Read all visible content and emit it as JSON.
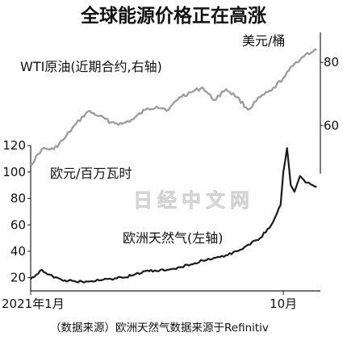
{
  "chart_data": {
    "type": "line",
    "title": "全球能源价格正在高涨",
    "source": "（数据来源）欧洲天然气数据来源于Refinitiv",
    "watermark": "日经中文网",
    "x_ticks": [
      "2021年1月",
      "10月"
    ],
    "xlim": [
      "2021-01",
      "2021-11"
    ],
    "left_axis": {
      "unit": "欧元/百万瓦时",
      "ylim": [
        10,
        125
      ],
      "ticks": [
        20,
        40,
        60,
        80,
        100,
        120
      ]
    },
    "right_axis": {
      "unit": "美元/桶",
      "ylim": [
        46,
        89
      ],
      "ticks": [
        60,
        80
      ]
    },
    "series": [
      {
        "name": "WTI原油(近期合约,右轴)",
        "axis": "right",
        "color": "#9e9e9e",
        "x": [
          "2021-01-01",
          "2021-01-13",
          "2021-01-26",
          "2021-02-07",
          "2021-02-19",
          "2021-03-04",
          "2021-03-16",
          "2021-03-29",
          "2021-04-10",
          "2021-04-22",
          "2021-05-05",
          "2021-05-17",
          "2021-05-30",
          "2021-06-11",
          "2021-06-23",
          "2021-07-06",
          "2021-07-18",
          "2021-07-31",
          "2021-08-12",
          "2021-08-24",
          "2021-09-06",
          "2021-09-18",
          "2021-10-01",
          "2021-10-13",
          "2021-10-25",
          "2021-11-06"
        ],
        "values": [
          47.5,
          52.5,
          52.5,
          56.0,
          60.5,
          64.5,
          63.0,
          61.0,
          60.5,
          62.0,
          65.0,
          66.0,
          65.0,
          69.0,
          70.5,
          72.0,
          68.0,
          71.5,
          69.0,
          65.0,
          69.0,
          71.0,
          75.0,
          79.5,
          82.5,
          84.0
        ]
      },
      {
        "name": "欧洲天然气(左轴)",
        "axis": "left",
        "color": "#1a1a1a",
        "x": [
          "2021-01-01",
          "2021-01-13",
          "2021-01-26",
          "2021-02-07",
          "2021-02-19",
          "2021-03-04",
          "2021-03-16",
          "2021-03-29",
          "2021-04-10",
          "2021-04-22",
          "2021-05-05",
          "2021-05-17",
          "2021-05-30",
          "2021-06-11",
          "2021-06-23",
          "2021-07-06",
          "2021-07-18",
          "2021-07-31",
          "2021-08-12",
          "2021-08-24",
          "2021-09-06",
          "2021-09-18",
          "2021-09-28",
          "2021-10-01",
          "2021-10-05",
          "2021-10-09",
          "2021-10-13",
          "2021-10-19",
          "2021-10-25",
          "2021-11-02",
          "2021-11-06"
        ],
        "values": [
          19,
          26,
          20,
          18,
          17,
          17,
          18,
          19,
          20,
          22,
          25,
          25,
          26,
          28,
          30,
          33,
          35,
          37,
          40,
          45,
          50,
          60,
          75,
          100,
          118,
          90,
          85,
          97,
          92,
          90,
          89
        ]
      }
    ]
  }
}
